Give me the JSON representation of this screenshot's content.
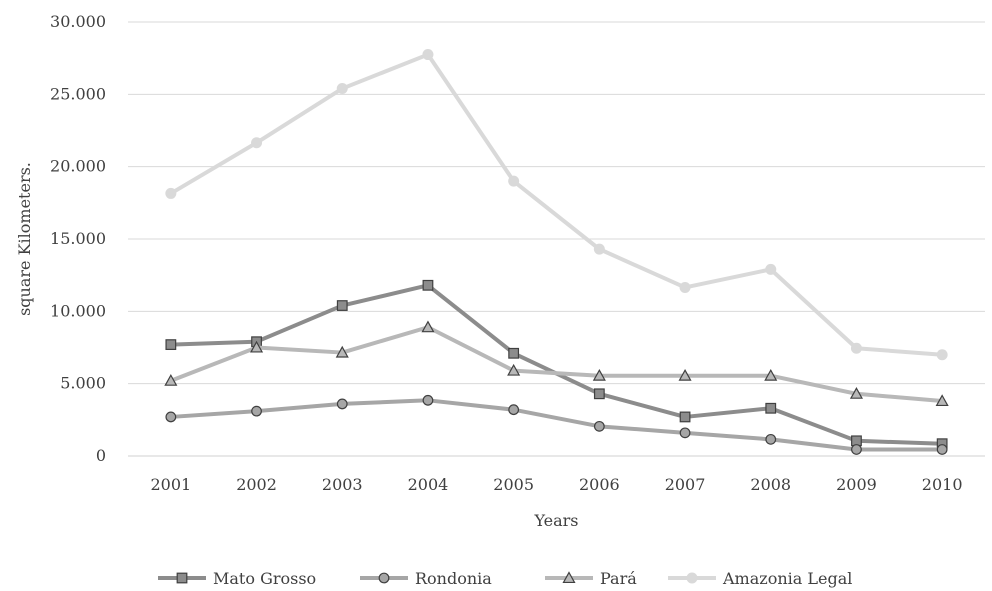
{
  "chart_data": {
    "type": "line",
    "title": "",
    "xlabel": "Years",
    "ylabel": "square Kilometers.",
    "categories": [
      "2001",
      "2002",
      "2003",
      "2004",
      "2005",
      "2006",
      "2007",
      "2008",
      "2009",
      "2010"
    ],
    "ylim": [
      0,
      30000
    ],
    "yticks": [
      0,
      5000,
      10000,
      15000,
      20000,
      25000,
      30000
    ],
    "ytick_labels": [
      "0",
      "5.000",
      "10.000",
      "15.000",
      "20.000",
      "25.000",
      "30.000"
    ],
    "grid": "horizontal",
    "legend_position": "bottom",
    "series": [
      {
        "name": "Mato Grosso",
        "marker": "square",
        "color": "#8c8c8c",
        "values": [
          7700,
          7900,
          10400,
          11800,
          7100,
          4300,
          2700,
          3300,
          1050,
          850
        ]
      },
      {
        "name": "Rondonia",
        "marker": "circle",
        "color": "#a6a6a6",
        "values": [
          2700,
          3100,
          3600,
          3850,
          3200,
          2050,
          1600,
          1150,
          450,
          450
        ]
      },
      {
        "name": "Pará",
        "marker": "triangle",
        "color": "#b8b8b8",
        "values": [
          5200,
          7500,
          7150,
          8900,
          5900,
          5550,
          5550,
          5550,
          4300,
          3800
        ]
      },
      {
        "name": "Amazonia Legal",
        "marker": "circle",
        "color": "#d9d9d9",
        "values": [
          18150,
          21650,
          25400,
          27750,
          19000,
          14300,
          11650,
          12900,
          7450,
          7000
        ]
      }
    ]
  }
}
